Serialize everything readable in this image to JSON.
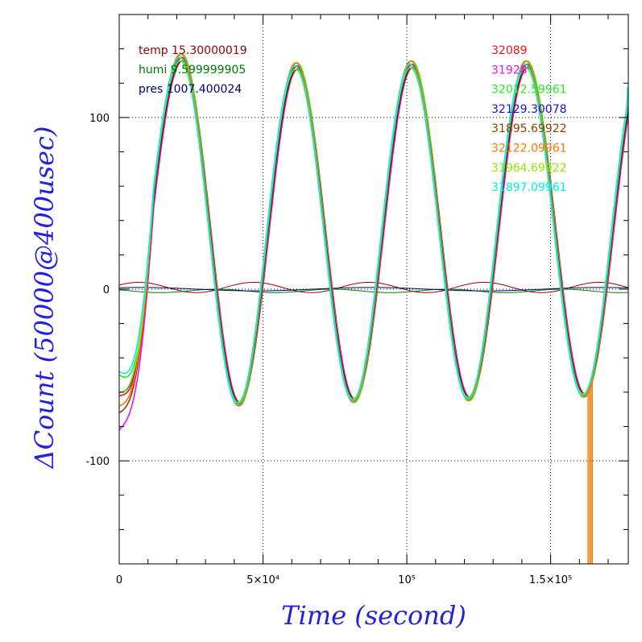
{
  "chart_data": {
    "type": "line",
    "xlabel": "Time (second)",
    "ylabel": "ΔCount (50000@400usec)",
    "xlim": [
      0,
      177000
    ],
    "ylim": [
      -160,
      160
    ],
    "grid": true,
    "x_ticks": [
      {
        "value": 0,
        "label": "0"
      },
      {
        "value": 50000,
        "label": "5×10⁴"
      },
      {
        "value": 100000,
        "label": "10⁵"
      },
      {
        "value": 150000,
        "label": "1.5×10⁵"
      }
    ],
    "y_ticks": [
      {
        "value": -100,
        "label": "-100"
      },
      {
        "value": 0,
        "label": "0"
      },
      {
        "value": 100,
        "label": "100"
      }
    ],
    "env_legend": [
      {
        "text": "temp 15.30000019",
        "color": "#990000"
      },
      {
        "text": "humi 9.599999905",
        "color": "#007700"
      },
      {
        "text": "pres 1007.400024",
        "color": "#000077"
      }
    ],
    "series": [
      {
        "name": "32089",
        "color": "#ff1111"
      },
      {
        "name": "31928",
        "color": "#ee11ee"
      },
      {
        "name": "32012.59961",
        "color": "#22ee22"
      },
      {
        "name": "32129.30078",
        "color": "#1111ee"
      },
      {
        "name": "31895.69922",
        "color": "#884400"
      },
      {
        "name": "32122.09961",
        "color": "#ff7700"
      },
      {
        "name": "31964.69922",
        "color": "#88ee00"
      },
      {
        "name": "31897.09961",
        "color": "#00eeee"
      }
    ],
    "main_wave": {
      "peaks": [
        [
          21500,
          135
        ],
        [
          61500,
          130
        ],
        [
          101500,
          131
        ],
        [
          141500,
          131
        ]
      ],
      "troughs": [
        [
          0,
          -60
        ],
        [
          41500,
          -67
        ],
        [
          81500,
          -65
        ],
        [
          121500,
          -64
        ],
        [
          161500,
          -62
        ]
      ],
      "end": [
        177000,
        118
      ]
    },
    "spike": {
      "series": "32122.09961",
      "x_start": 163000,
      "x_end": 164500,
      "y_min": -160
    },
    "env_curves": [
      {
        "name": "temp",
        "color": "#990000",
        "amplitude": 3,
        "offset": 1,
        "period": 40000,
        "phase": 0.5
      },
      {
        "name": "humi",
        "color": "#007700",
        "amplitude": 1,
        "offset": -1,
        "period": 40000,
        "phase": 2.5
      },
      {
        "name": "pres",
        "color": "#000077",
        "amplitude": 1,
        "offset": 0,
        "period": 80000,
        "phase": 1.0
      }
    ]
  }
}
